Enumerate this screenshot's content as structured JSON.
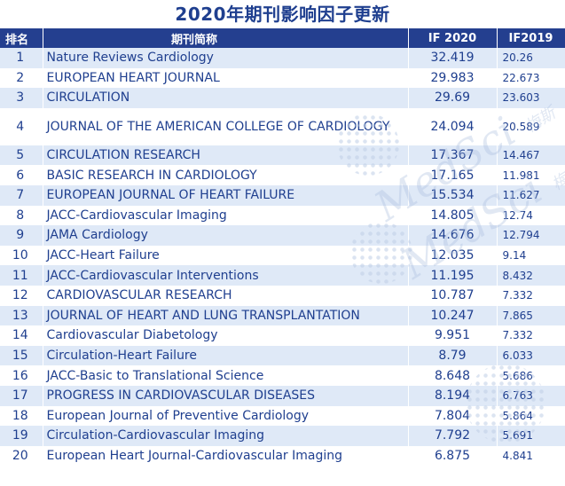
{
  "title": "2020年期刊影响因子更新",
  "header": {
    "rank": "排名",
    "name": "期刊简称",
    "if2020": "IF 2020",
    "if2019": "IF2019"
  },
  "rows": [
    {
      "rank": "1",
      "name": "Nature Reviews Cardiology",
      "if2020": "32.419",
      "if2019": "20.26"
    },
    {
      "rank": "2",
      "name": "EUROPEAN HEART JOURNAL",
      "if2020": "29.983",
      "if2019": "22.673"
    },
    {
      "rank": "3",
      "name": "CIRCULATION",
      "if2020": "29.69",
      "if2019": "23.603"
    },
    {
      "rank": "4",
      "name": "JOURNAL OF THE AMERICAN COLLEGE OF CARDIOLOGY",
      "if2020": "24.094",
      "if2019": "20.589"
    },
    {
      "rank": "5",
      "name": "CIRCULATION RESEARCH",
      "if2020": "17.367",
      "if2019": "14.467"
    },
    {
      "rank": "6",
      "name": "BASIC RESEARCH IN CARDIOLOGY",
      "if2020": "17.165",
      "if2019": "11.981"
    },
    {
      "rank": "7",
      "name": "EUROPEAN JOURNAL OF HEART FAILURE",
      "if2020": "15.534",
      "if2019": "11.627"
    },
    {
      "rank": "8",
      "name": "JACC-Cardiovascular Imaging",
      "if2020": "14.805",
      "if2019": "12.74"
    },
    {
      "rank": "9",
      "name": "JAMA Cardiology",
      "if2020": "14.676",
      "if2019": "12.794"
    },
    {
      "rank": "10",
      "name": "JACC-Heart Failure",
      "if2020": "12.035",
      "if2019": "9.14"
    },
    {
      "rank": "11",
      "name": "JACC-Cardiovascular Interventions",
      "if2020": "11.195",
      "if2019": "8.432"
    },
    {
      "rank": "12",
      "name": "CARDIOVASCULAR RESEARCH",
      "if2020": "10.787",
      "if2019": "7.332"
    },
    {
      "rank": "13",
      "name": "JOURNAL OF HEART AND LUNG TRANSPLANTATION",
      "if2020": "10.247",
      "if2019": "7.865"
    },
    {
      "rank": "14",
      "name": "Cardiovascular Diabetology",
      "if2020": "9.951",
      "if2019": "7.332"
    },
    {
      "rank": "15",
      "name": "Circulation-Heart Failure",
      "if2020": "8.79",
      "if2019": "6.033"
    },
    {
      "rank": "16",
      "name": "JACC-Basic to Translational Science",
      "if2020": "8.648",
      "if2019": "5.686"
    },
    {
      "rank": "17",
      "name": "PROGRESS IN CARDIOVASCULAR DISEASES",
      "if2020": "8.194",
      "if2019": "6.763"
    },
    {
      "rank": "18",
      "name": "European Journal of Preventive Cardiology",
      "if2020": "7.804",
      "if2019": "5.864"
    },
    {
      "rank": "19",
      "name": "Circulation-Cardiovascular Imaging",
      "if2020": "7.792",
      "if2019": "5.691"
    },
    {
      "rank": "20",
      "name": "European Heart Journal-Cardiovascular Imaging",
      "if2020": "6.875",
      "if2019": "4.841"
    }
  ],
  "watermark": {
    "brand": "MedSci",
    "brand_cn": "梅斯"
  }
}
